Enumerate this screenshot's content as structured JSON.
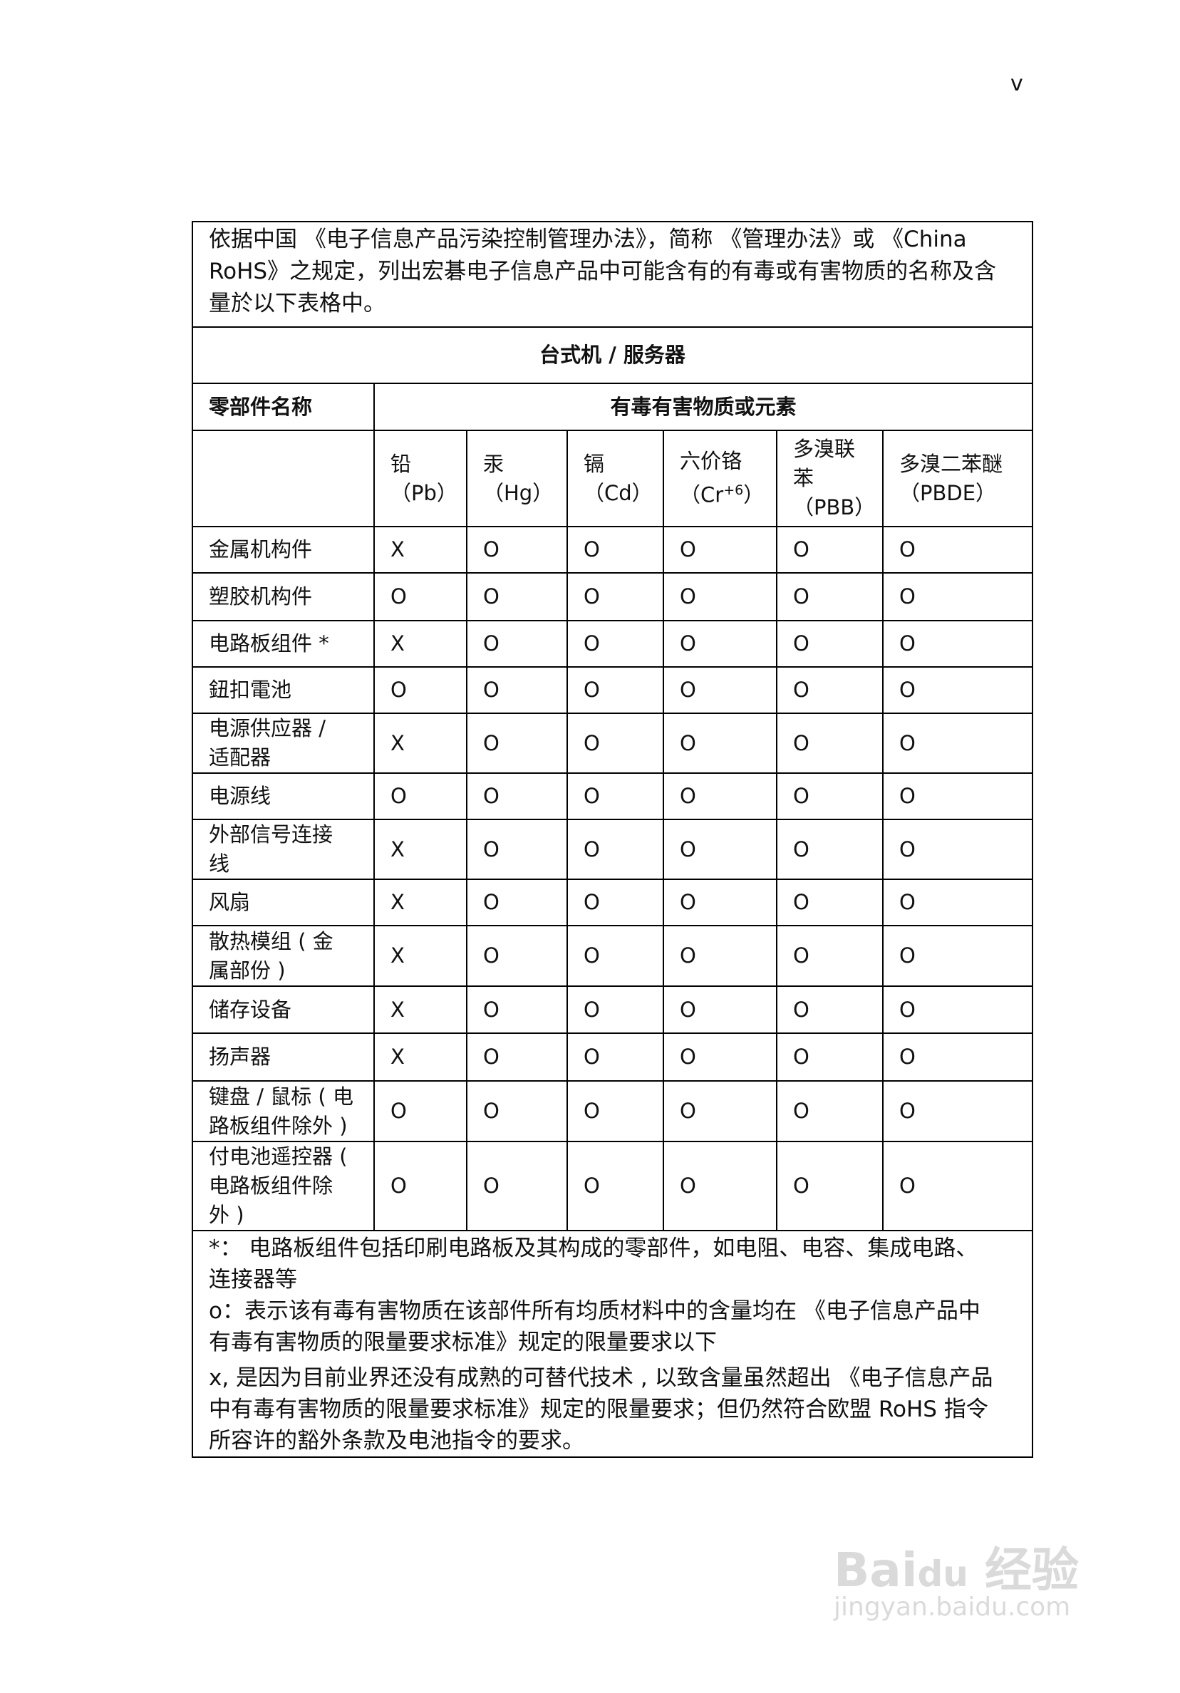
{
  "page_number": "v",
  "intro": "依据中国 《电子信息产品污染控制管理办法》，简称 《管理办法》或 《China\nRoHS》之规定，列出宏碁电子信息产品中可能含有的有毒或有害物质的名称及含\n量於以下表格中。",
  "table": {
    "title": "台式机 / 服务器",
    "part_header": "零部件名称",
    "substance_header": "有毒有害物质或元素",
    "substances": [
      {
        "name": "铅",
        "symbol": "（Pb）"
      },
      {
        "name": "汞",
        "symbol": "（Hg）"
      },
      {
        "name": "镉",
        "symbol": "（Cd）"
      },
      {
        "name": "六价铬",
        "symbol": "（Cr",
        "sup": "+6",
        "close": "）"
      },
      {
        "name": "多溴联\n苯",
        "symbol": "（PBB）"
      },
      {
        "name": "多溴二苯醚",
        "symbol": "（PBDE）"
      }
    ],
    "rows": [
      {
        "part": "金属机构件",
        "values": [
          "X",
          "O",
          "O",
          "O",
          "O",
          "O"
        ]
      },
      {
        "part": "塑胶机构件",
        "values": [
          "O",
          "O",
          "O",
          "O",
          "O",
          "O"
        ]
      },
      {
        "part": "电路板组件 *",
        "values": [
          "X",
          "O",
          "O",
          "O",
          "O",
          "O"
        ]
      },
      {
        "part": "鈕扣電池",
        "values": [
          "O",
          "O",
          "O",
          "O",
          "O",
          "O"
        ]
      },
      {
        "part": "电源供应器 /\n适配器",
        "values": [
          "X",
          "O",
          "O",
          "O",
          "O",
          "O"
        ]
      },
      {
        "part": "电源线",
        "values": [
          "O",
          "O",
          "O",
          "O",
          "O",
          "O"
        ]
      },
      {
        "part": "外部信号连接\n线",
        "values": [
          "X",
          "O",
          "O",
          "O",
          "O",
          "O"
        ]
      },
      {
        "part": "风扇",
        "values": [
          "X",
          "O",
          "O",
          "O",
          "O",
          "O"
        ]
      },
      {
        "part": "散热模组 ( 金\n属部份 )",
        "values": [
          "X",
          "O",
          "O",
          "O",
          "O",
          "O"
        ]
      },
      {
        "part": "储存设备",
        "values": [
          "X",
          "O",
          "O",
          "O",
          "O",
          "O"
        ]
      },
      {
        "part": "扬声器",
        "values": [
          "X",
          "O",
          "O",
          "O",
          "O",
          "O"
        ]
      },
      {
        "part": "键盘 / 鼠标 ( 电\n路板组件除外 )",
        "values": [
          "O",
          "O",
          "O",
          "O",
          "O",
          "O"
        ]
      },
      {
        "part": "付电池遥控器 (\n电路板组件除\n外 )",
        "values": [
          "O",
          "O",
          "O",
          "O",
          "O",
          "O"
        ]
      }
    ],
    "notes": [
      "*：  电路板组件包括印刷电路板及其构成的零部件，如电阻、电容、集成电路、\n连接器等",
      "o：表示该有毒有害物质在该部件所有均质材料中的含量均在 《电子信息产品中\n有毒有害物质的限量要求标准》规定的限量要求以下",
      "x, 是因为目前业界还没有成熟的可替代技术 , 以致含量虽然超出 《电子信息产品\n中有毒有害物质的限量要求标准》规定的限量要求；但仍然符合欧盟 RoHS 指令\n所容许的豁外条款及电池指令的要求。"
    ]
  },
  "watermark": {
    "logo": "Baidu 经验",
    "url": "jingyan.baidu.com"
  }
}
